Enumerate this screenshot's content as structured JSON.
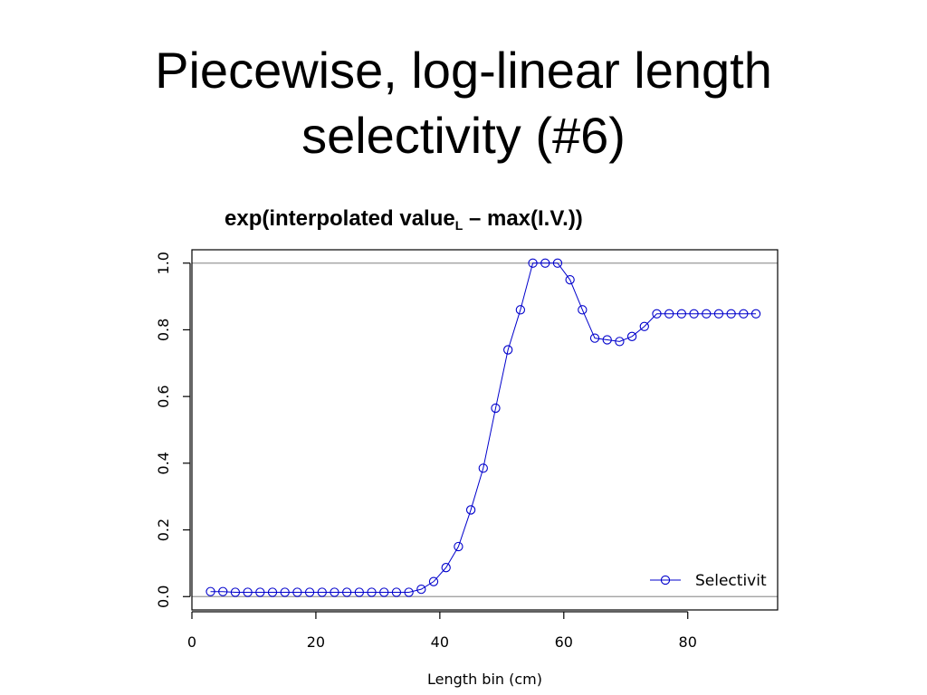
{
  "slide": {
    "title_line1": "Piecewise, log-linear length",
    "title_line2": "selectivity (#6)",
    "subtitle_main": "exp(interpolated value",
    "subtitle_sub": "L",
    "subtitle_tail": " – max(I.V.))"
  },
  "chart_data": {
    "type": "line",
    "title": "exp(interpolated value_L – max(I.V.))",
    "xlabel": "Length bin (cm)",
    "ylabel": "",
    "xlim": [
      0,
      94.5
    ],
    "ylim": [
      -0.04,
      1.04
    ],
    "xticks": [
      0,
      20,
      40,
      60,
      80
    ],
    "yticks": [
      0.0,
      0.2,
      0.4,
      0.6,
      0.8,
      1.0
    ],
    "xtick_labels": [
      "0",
      "20",
      "40",
      "60",
      "80"
    ],
    "ytick_labels": [
      "0.0",
      "0.2",
      "0.4",
      "0.6",
      "0.8",
      "1.0"
    ],
    "reference_lines": [
      0.0,
      1.0
    ],
    "legend_position": "bottom-right",
    "series": [
      {
        "name": "Selectivit",
        "color": "#0000cc",
        "marker": "open-circle",
        "x": [
          3,
          5,
          7,
          9,
          11,
          13,
          15,
          17,
          19,
          21,
          23,
          25,
          27,
          29,
          31,
          33,
          35,
          37,
          39,
          41,
          43,
          45,
          47,
          49,
          51,
          53,
          55,
          57,
          59,
          61,
          63,
          65,
          67,
          69,
          71,
          73,
          75,
          77,
          79,
          81,
          83,
          85,
          87,
          89,
          91
        ],
        "values": [
          0.015,
          0.015,
          0.013,
          0.013,
          0.013,
          0.013,
          0.013,
          0.013,
          0.013,
          0.013,
          0.013,
          0.013,
          0.013,
          0.013,
          0.013,
          0.013,
          0.013,
          0.022,
          0.045,
          0.087,
          0.15,
          0.26,
          0.385,
          0.565,
          0.74,
          0.86,
          1.0,
          1.0,
          1.0,
          0.95,
          0.86,
          0.775,
          0.77,
          0.765,
          0.78,
          0.81,
          0.848,
          0.848,
          0.848,
          0.848,
          0.848,
          0.848,
          0.848,
          0.848,
          0.848
        ]
      }
    ]
  }
}
